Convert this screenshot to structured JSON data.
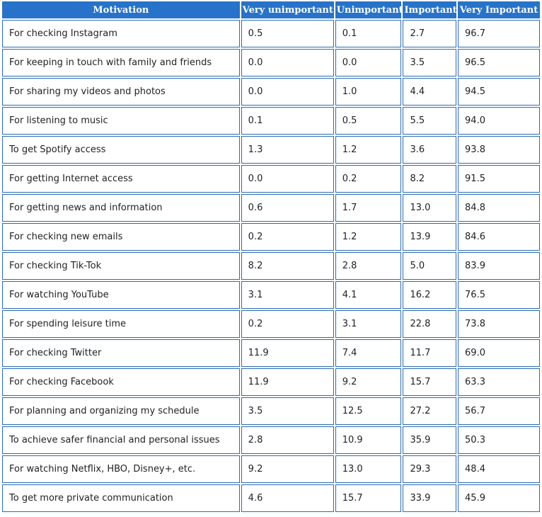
{
  "table": {
    "header": [
      "Motivation",
      "Very unimportant",
      "Unimportant",
      "Important",
      "Very Important"
    ],
    "rows": [
      [
        "For checking Instagram",
        "0.5",
        "0.1",
        "2.7",
        "96.7"
      ],
      [
        "For keeping in touch with family and friends",
        "0.0",
        "0.0",
        "3.5",
        "96.5"
      ],
      [
        "For sharing my videos and photos",
        "0.0",
        "1.0",
        "4.4",
        "94.5"
      ],
      [
        "For listening to music",
        "0.1",
        "0.5",
        "5.5",
        "94.0"
      ],
      [
        "To get Spotify access",
        "1.3",
        "1.2",
        "3.6",
        "93.8"
      ],
      [
        "For getting Internet access",
        "0.0",
        "0.2",
        "8.2",
        "91.5"
      ],
      [
        "For getting news and information",
        "0.6",
        "1.7",
        "13.0",
        "84.8"
      ],
      [
        "For checking new emails",
        "0.2",
        "1.2",
        "13.9",
        "84.6"
      ],
      [
        "For checking Tik-Tok",
        "8.2",
        "2.8",
        "5.0",
        "83.9"
      ],
      [
        "For watching YouTube",
        "3.1",
        "4.1",
        "16.2",
        "76.5"
      ],
      [
        "For spending leisure time",
        "0.2",
        "3.1",
        "22.8",
        "73.8"
      ],
      [
        "For checking Twitter",
        "11.9",
        "7.4",
        "11.7",
        "69.0"
      ],
      [
        "For checking Facebook",
        "11.9",
        "9.2",
        "15.7",
        "63.3"
      ],
      [
        "For planning and organizing my schedule",
        "3.5",
        "12.5",
        "27.2",
        "56.7"
      ],
      [
        "To achieve safer financial and personal issues",
        "2.8",
        "10.9",
        "35.9",
        "50.3"
      ],
      [
        "For watching Netflix, HBO, Disney+, etc.",
        "9.2",
        "13.0",
        "29.3",
        "48.4"
      ],
      [
        "To get more private communication",
        "4.6",
        "15.7",
        "33.9",
        "45.9"
      ]
    ]
  }
}
